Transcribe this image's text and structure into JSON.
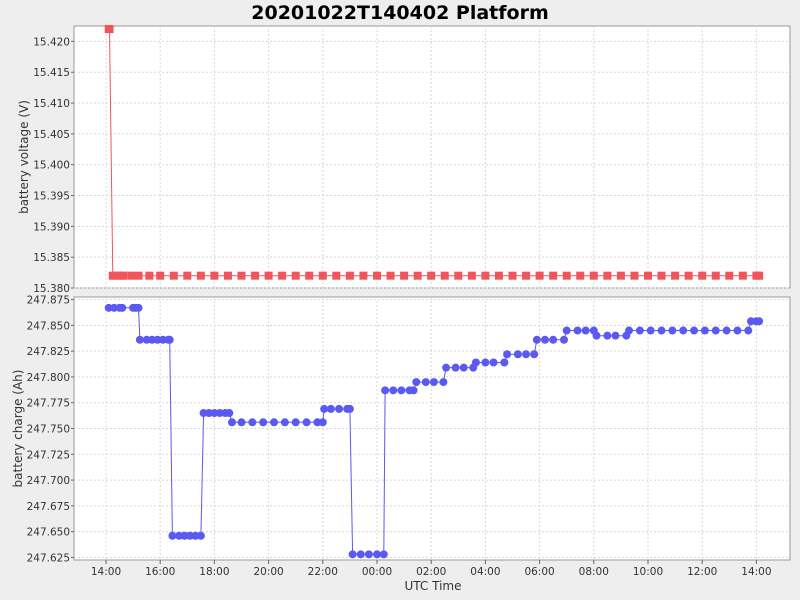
{
  "title": "20201022T140402 Platform",
  "x_axis_label": "UTC Time",
  "colors": {
    "voltage": "#f2545b",
    "charge": "#5a5af2",
    "plot_bg": "#ffffff",
    "grid": "#d8d8d8",
    "page_bg": "#eeeeee"
  },
  "chart_data": [
    {
      "type": "scatter",
      "ylabel": "battery voltage (V)",
      "ylim": [
        15.38,
        15.4225
      ],
      "yticks": [
        "15.380",
        "15.385",
        "15.390",
        "15.395",
        "15.400",
        "15.405",
        "15.410",
        "15.415",
        "15.420"
      ],
      "xticks": [
        "14:00",
        "16:00",
        "18:00",
        "20:00",
        "22:00",
        "00:00",
        "02:00",
        "04:00",
        "06:00",
        "08:00",
        "10:00",
        "12:00",
        "14:00"
      ],
      "xlim_hours": [
        13.05,
        14.15
      ],
      "grid": true,
      "series": [
        {
          "points": [
            [
              14.1,
              15.422
            ],
            [
              14.13,
              15.422
            ],
            [
              14.25,
              15.382
            ],
            [
              14.4,
              15.382
            ],
            [
              14.55,
              15.382
            ],
            [
              14.65,
              15.382
            ],
            [
              14.95,
              15.382
            ],
            [
              15.2,
              15.382
            ],
            [
              15.6,
              15.382
            ],
            [
              16.0,
              15.382
            ],
            [
              16.5,
              15.382
            ],
            [
              17.0,
              15.382
            ],
            [
              17.5,
              15.382
            ],
            [
              18.0,
              15.382
            ],
            [
              18.5,
              15.382
            ],
            [
              19.0,
              15.382
            ],
            [
              19.5,
              15.382
            ],
            [
              20.0,
              15.382
            ],
            [
              20.5,
              15.382
            ],
            [
              21.0,
              15.382
            ],
            [
              21.5,
              15.382
            ],
            [
              22.0,
              15.382
            ],
            [
              22.5,
              15.382
            ],
            [
              23.0,
              15.382
            ],
            [
              23.5,
              15.382
            ],
            [
              24.0,
              15.382
            ],
            [
              24.5,
              15.382
            ],
            [
              25.0,
              15.382
            ],
            [
              25.5,
              15.382
            ],
            [
              26.0,
              15.382
            ],
            [
              26.5,
              15.382
            ],
            [
              27.0,
              15.382
            ],
            [
              27.5,
              15.382
            ],
            [
              28.0,
              15.382
            ],
            [
              28.5,
              15.382
            ],
            [
              29.0,
              15.382
            ],
            [
              29.5,
              15.382
            ],
            [
              30.0,
              15.382
            ],
            [
              30.5,
              15.382
            ],
            [
              31.0,
              15.382
            ],
            [
              31.5,
              15.382
            ],
            [
              32.0,
              15.382
            ],
            [
              32.5,
              15.382
            ],
            [
              33.0,
              15.382
            ],
            [
              33.5,
              15.382
            ],
            [
              34.0,
              15.382
            ],
            [
              34.5,
              15.382
            ],
            [
              35.0,
              15.382
            ],
            [
              35.5,
              15.382
            ],
            [
              36.0,
              15.382
            ],
            [
              36.5,
              15.382
            ],
            [
              37.0,
              15.382
            ],
            [
              37.5,
              15.382
            ],
            [
              38.0,
              15.382
            ],
            [
              38.1,
              15.382
            ]
          ]
        }
      ]
    },
    {
      "type": "scatter",
      "ylabel": "battery charge (Ah)",
      "ylim": [
        247.6225,
        247.8775
      ],
      "yticks": [
        "247.625",
        "247.650",
        "247.675",
        "247.700",
        "247.725",
        "247.750",
        "247.775",
        "247.800",
        "247.825",
        "247.850",
        "247.875"
      ],
      "xticks": [
        "14:00",
        "16:00",
        "18:00",
        "20:00",
        "22:00",
        "00:00",
        "02:00",
        "04:00",
        "06:00",
        "08:00",
        "10:00",
        "12:00",
        "14:00"
      ],
      "grid": true,
      "series": [
        {
          "points": [
            [
              14.1,
              247.867
            ],
            [
              14.3,
              247.867
            ],
            [
              14.5,
              247.867
            ],
            [
              14.6,
              247.867
            ],
            [
              15.0,
              247.867
            ],
            [
              15.1,
              247.867
            ],
            [
              15.2,
              247.867
            ],
            [
              15.25,
              247.836
            ],
            [
              15.5,
              247.836
            ],
            [
              15.7,
              247.836
            ],
            [
              15.9,
              247.836
            ],
            [
              16.1,
              247.836
            ],
            [
              16.3,
              247.836
            ],
            [
              16.35,
              247.836
            ],
            [
              16.45,
              247.646
            ],
            [
              16.7,
              247.646
            ],
            [
              16.9,
              247.646
            ],
            [
              17.1,
              247.646
            ],
            [
              17.3,
              247.646
            ],
            [
              17.5,
              247.646
            ],
            [
              17.6,
              247.765
            ],
            [
              17.8,
              247.765
            ],
            [
              18.0,
              247.765
            ],
            [
              18.2,
              247.765
            ],
            [
              18.4,
              247.765
            ],
            [
              18.55,
              247.765
            ],
            [
              18.65,
              247.756
            ],
            [
              19.0,
              247.756
            ],
            [
              19.4,
              247.756
            ],
            [
              19.8,
              247.756
            ],
            [
              20.2,
              247.756
            ],
            [
              20.6,
              247.756
            ],
            [
              21.0,
              247.756
            ],
            [
              21.4,
              247.756
            ],
            [
              21.8,
              247.756
            ],
            [
              22.0,
              247.756
            ],
            [
              22.05,
              247.769
            ],
            [
              22.3,
              247.769
            ],
            [
              22.6,
              247.769
            ],
            [
              22.9,
              247.769
            ],
            [
              23.0,
              247.769
            ],
            [
              23.1,
              247.628
            ],
            [
              23.4,
              247.628
            ],
            [
              23.7,
              247.628
            ],
            [
              24.0,
              247.628
            ],
            [
              24.25,
              247.628
            ],
            [
              24.3,
              247.787
            ],
            [
              24.6,
              247.787
            ],
            [
              24.9,
              247.787
            ],
            [
              25.2,
              247.787
            ],
            [
              25.35,
              247.787
            ],
            [
              25.45,
              247.795
            ],
            [
              25.8,
              247.795
            ],
            [
              26.1,
              247.795
            ],
            [
              26.45,
              247.795
            ],
            [
              26.55,
              247.809
            ],
            [
              26.9,
              247.809
            ],
            [
              27.2,
              247.809
            ],
            [
              27.55,
              247.809
            ],
            [
              27.65,
              247.814
            ],
            [
              28.0,
              247.814
            ],
            [
              28.3,
              247.814
            ],
            [
              28.7,
              247.814
            ],
            [
              28.8,
              247.822
            ],
            [
              29.2,
              247.822
            ],
            [
              29.5,
              247.822
            ],
            [
              29.8,
              247.822
            ],
            [
              29.9,
              247.836
            ],
            [
              30.2,
              247.836
            ],
            [
              30.5,
              247.836
            ],
            [
              30.9,
              247.836
            ],
            [
              31.0,
              247.845
            ],
            [
              31.4,
              247.845
            ],
            [
              31.7,
              247.845
            ],
            [
              32.0,
              247.845
            ],
            [
              32.1,
              247.84
            ],
            [
              32.5,
              247.84
            ],
            [
              32.8,
              247.84
            ],
            [
              33.2,
              247.84
            ],
            [
              33.3,
              247.845
            ],
            [
              33.7,
              247.845
            ],
            [
              34.1,
              247.845
            ],
            [
              34.5,
              247.845
            ],
            [
              34.9,
              247.845
            ],
            [
              35.3,
              247.845
            ],
            [
              35.7,
              247.845
            ],
            [
              36.1,
              247.845
            ],
            [
              36.5,
              247.845
            ],
            [
              36.9,
              247.845
            ],
            [
              37.3,
              247.845
            ],
            [
              37.7,
              247.845
            ],
            [
              37.8,
              247.854
            ],
            [
              38.0,
              247.854
            ],
            [
              38.1,
              247.854
            ]
          ]
        }
      ]
    }
  ]
}
